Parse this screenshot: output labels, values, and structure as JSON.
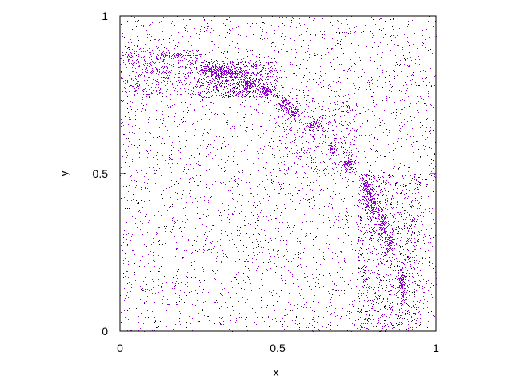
{
  "chart_data": {
    "type": "scatter",
    "title": "",
    "xlabel": "x",
    "ylabel": "y",
    "xlim": [
      0,
      1
    ],
    "ylim": [
      0,
      1
    ],
    "xticks": [
      "0",
      "0.5",
      "1"
    ],
    "yticks": [
      "0",
      "0.5",
      "1"
    ],
    "grid": false,
    "legend": "none",
    "colors": {
      "primary": "#9400d3",
      "secondary": "#000000"
    },
    "regions": [
      {
        "kind": "uniform",
        "color": "primary",
        "count": 3600,
        "x": [
          0,
          1
        ],
        "y": [
          0,
          1
        ]
      },
      {
        "kind": "uniform",
        "color": "secondary",
        "count": 1100,
        "x": [
          0,
          1
        ],
        "y": [
          0,
          1
        ]
      },
      {
        "kind": "uniform",
        "color": "primary",
        "count": 500,
        "x": [
          0,
          0.25
        ],
        "y": [
          0.75,
          0.9
        ]
      },
      {
        "kind": "uniform",
        "color": "primary",
        "count": 700,
        "x": [
          0.25,
          0.5
        ],
        "y": [
          0.74,
          0.86
        ]
      },
      {
        "kind": "uniform",
        "color": "secondary",
        "count": 120,
        "x": [
          0.25,
          0.5
        ],
        "y": [
          0.74,
          0.86
        ]
      },
      {
        "kind": "uniform",
        "color": "primary",
        "count": 500,
        "x": [
          0.5,
          0.75
        ],
        "y": [
          0.5,
          0.75
        ]
      },
      {
        "kind": "uniform",
        "color": "primary",
        "count": 900,
        "x": [
          0.75,
          0.95
        ],
        "y": [
          0,
          0.5
        ]
      },
      {
        "kind": "uniform",
        "color": "secondary",
        "count": 200,
        "x": [
          0.75,
          0.95
        ],
        "y": [
          0,
          0.5
        ]
      }
    ],
    "clusters": [
      {
        "x": 0.17,
        "y": 0.875,
        "sx": 0.03,
        "sy": 0.004,
        "count": 60
      },
      {
        "x": 0.29,
        "y": 0.83,
        "sx": 0.02,
        "sy": 0.01,
        "count": 150
      },
      {
        "x": 0.35,
        "y": 0.815,
        "sx": 0.025,
        "sy": 0.01,
        "count": 180
      },
      {
        "x": 0.41,
        "y": 0.785,
        "sx": 0.02,
        "sy": 0.01,
        "count": 150
      },
      {
        "x": 0.46,
        "y": 0.765,
        "sx": 0.015,
        "sy": 0.008,
        "count": 120
      },
      {
        "x": 0.52,
        "y": 0.72,
        "sx": 0.01,
        "sy": 0.01,
        "count": 90
      },
      {
        "x": 0.55,
        "y": 0.695,
        "sx": 0.01,
        "sy": 0.01,
        "count": 80
      },
      {
        "x": 0.61,
        "y": 0.655,
        "sx": 0.01,
        "sy": 0.008,
        "count": 70
      },
      {
        "x": 0.67,
        "y": 0.58,
        "sx": 0.008,
        "sy": 0.008,
        "count": 60
      },
      {
        "x": 0.72,
        "y": 0.53,
        "sx": 0.01,
        "sy": 0.012,
        "count": 80
      },
      {
        "x": 0.78,
        "y": 0.45,
        "sx": 0.01,
        "sy": 0.02,
        "count": 150
      },
      {
        "x": 0.8,
        "y": 0.4,
        "sx": 0.012,
        "sy": 0.02,
        "count": 150
      },
      {
        "x": 0.83,
        "y": 0.34,
        "sx": 0.01,
        "sy": 0.02,
        "count": 130
      },
      {
        "x": 0.85,
        "y": 0.28,
        "sx": 0.008,
        "sy": 0.015,
        "count": 100
      },
      {
        "x": 0.89,
        "y": 0.16,
        "sx": 0.006,
        "sy": 0.03,
        "count": 120
      }
    ]
  }
}
